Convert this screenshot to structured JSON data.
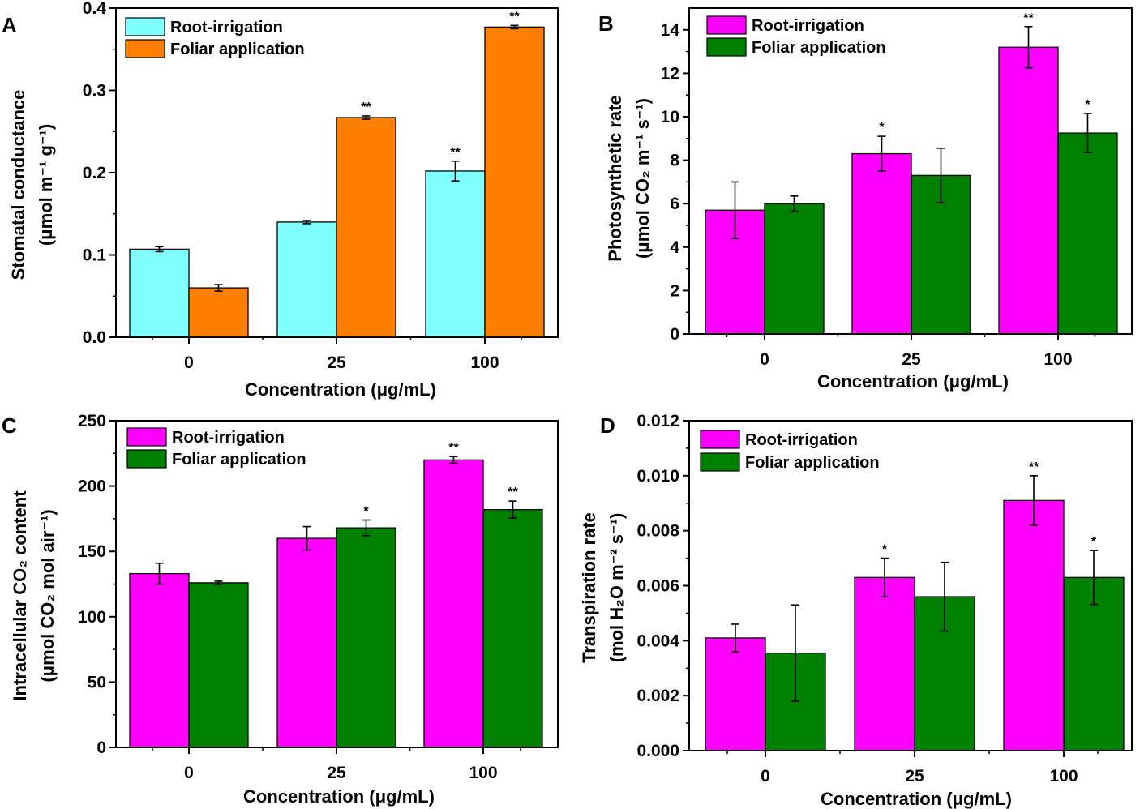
{
  "figure": {
    "colors": {
      "cyan": "#80FFFF",
      "orange": "#FF8000",
      "magenta": "#FF00FF",
      "green": "#008000"
    },
    "legend_labels": [
      "Root-irrigation",
      "Foliar application"
    ]
  },
  "chart_data": [
    {
      "panel": "A",
      "type": "bar",
      "categories": [
        "0",
        "25",
        "100"
      ],
      "xlabel": "Concentration (μg/mL)",
      "ylabel_line1": "Stomatal conductance",
      "ylabel_line2": "(μmol m⁻¹ g⁻¹)",
      "ylim": [
        0,
        0.4
      ],
      "yticks": [
        "0.0",
        "0.1",
        "0.2",
        "0.3",
        "0.4"
      ],
      "series": [
        {
          "name": "Root-irrigation",
          "color": "#80FFFF",
          "values": [
            0.107,
            0.14,
            0.202
          ],
          "errors": [
            0.003,
            0.002,
            0.012
          ],
          "sig": [
            "",
            "",
            "**"
          ]
        },
        {
          "name": "Foliar application",
          "color": "#FF8000",
          "values": [
            0.06,
            0.267,
            0.377
          ],
          "errors": [
            0.004,
            0.002,
            0.002
          ],
          "sig": [
            "",
            "**",
            "**"
          ]
        }
      ]
    },
    {
      "panel": "B",
      "type": "bar",
      "categories": [
        "0",
        "25",
        "100"
      ],
      "xlabel": "Concentration (μg/mL)",
      "ylabel_line1": "Photosynthetic rate",
      "ylabel_line2": "(μmol CO₂ m⁻¹ s⁻¹)",
      "ylim": [
        0,
        15
      ],
      "yticks": [
        "0",
        "2",
        "4",
        "6",
        "8",
        "10",
        "12",
        "14"
      ],
      "series": [
        {
          "name": "Root-irrigation",
          "color": "#FF00FF",
          "values": [
            5.7,
            8.3,
            13.2
          ],
          "errors": [
            1.3,
            0.8,
            0.95
          ],
          "sig": [
            "",
            "*",
            "**"
          ]
        },
        {
          "name": "Foliar application",
          "color": "#008000",
          "values": [
            6.0,
            7.3,
            9.25
          ],
          "errors": [
            0.35,
            1.25,
            0.9
          ],
          "sig": [
            "",
            "",
            "*"
          ]
        }
      ]
    },
    {
      "panel": "C",
      "type": "bar",
      "categories": [
        "0",
        "25",
        "100"
      ],
      "xlabel": "Concentration (μg/mL)",
      "ylabel_line1": "Intracellular CO₂ content",
      "ylabel_line2": "(μmol CO₂ mol air⁻¹)",
      "ylim": [
        0,
        250
      ],
      "yticks": [
        "0",
        "50",
        "100",
        "150",
        "200",
        "250"
      ],
      "series": [
        {
          "name": "Root-irrigation",
          "color": "#FF00FF",
          "values": [
            133,
            160,
            220
          ],
          "errors": [
            8,
            9,
            2.5
          ],
          "sig": [
            "",
            "",
            "**"
          ]
        },
        {
          "name": "Foliar application",
          "color": "#008000",
          "values": [
            126,
            168,
            182
          ],
          "errors": [
            1.2,
            6,
            6.5
          ],
          "sig": [
            "",
            "*",
            "**"
          ]
        }
      ]
    },
    {
      "panel": "D",
      "type": "bar",
      "categories": [
        "0",
        "25",
        "100"
      ],
      "xlabel": "Concentration (μg/mL)",
      "ylabel_line1": "Transpiration rate",
      "ylabel_line2": "(mol H₂O m⁻² s⁻¹)",
      "ylim": [
        0,
        0.012
      ],
      "yticks": [
        "0.000",
        "0.002",
        "0.004",
        "0.006",
        "0.008",
        "0.010",
        "0.012"
      ],
      "series": [
        {
          "name": "Root-irrigation",
          "color": "#FF00FF",
          "values": [
            0.0041,
            0.0063,
            0.0091
          ],
          "errors": [
            0.0005,
            0.0007,
            0.0009
          ],
          "sig": [
            "",
            "*",
            "**"
          ]
        },
        {
          "name": "Foliar application",
          "color": "#008000",
          "values": [
            0.00355,
            0.0056,
            0.0063
          ],
          "errors": [
            0.00175,
            0.00125,
            0.00098
          ],
          "sig": [
            "",
            "",
            "*"
          ]
        }
      ]
    }
  ]
}
